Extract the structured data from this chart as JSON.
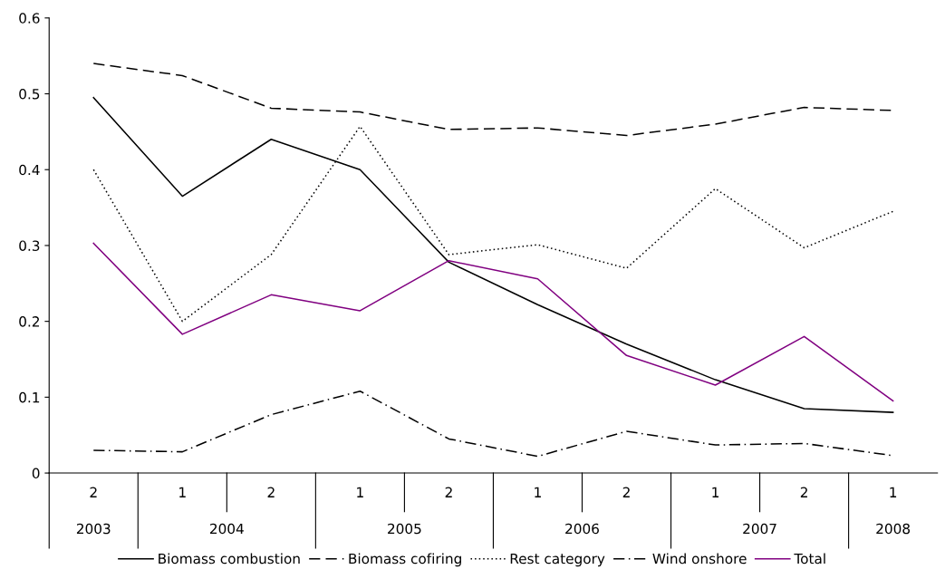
{
  "chart_data": {
    "type": "line",
    "categories": [
      "2",
      "1",
      "2",
      "1",
      "2",
      "1",
      "2",
      "1",
      "2",
      "1"
    ],
    "annotations": [
      "2003",
      "2004",
      "2005",
      "2006",
      "2007",
      "2008"
    ],
    "ylim": [
      0,
      0.6
    ],
    "yticks": [
      {
        "value": 0,
        "label": "0"
      },
      0.1,
      0.2,
      0.3,
      0.4,
      0.5,
      0.6
    ],
    "grid": false,
    "legend": "bottom",
    "marker": "none",
    "series": [
      {
        "name": "Biomass combustion",
        "color": "#000000",
        "line_style": "solid",
        "values": [
          0.495,
          0.365,
          0.44,
          0.4,
          0.278,
          0.222,
          0.17,
          0.123,
          0.085,
          0.08
        ]
      },
      {
        "name": "Biomass cofiring",
        "color": "#000000",
        "line_style": "dashed",
        "values": [
          0.54,
          0.524,
          0.481,
          0.476,
          0.453,
          0.455,
          0.445,
          0.46,
          0.482,
          0.478
        ]
      },
      {
        "name": "Rest category",
        "color": "#000000",
        "line_style": "dotted",
        "values": [
          0.4,
          0.2,
          0.288,
          0.457,
          0.288,
          0.301,
          0.27,
          0.375,
          0.297,
          0.345
        ]
      },
      {
        "name": "Wind onshore",
        "color": "#000000",
        "line_style": "dashdot",
        "values": [
          0.03,
          0.028,
          0.077,
          0.108,
          0.045,
          0.022,
          0.055,
          0.037,
          0.039,
          0.023
        ]
      },
      {
        "name": "Total",
        "color": "#800080",
        "line_style": "solid",
        "values": [
          0.303,
          0.183,
          0.235,
          0.214,
          0.28,
          0.256,
          0.155,
          0.116,
          0.18,
          0.095
        ]
      }
    ]
  }
}
